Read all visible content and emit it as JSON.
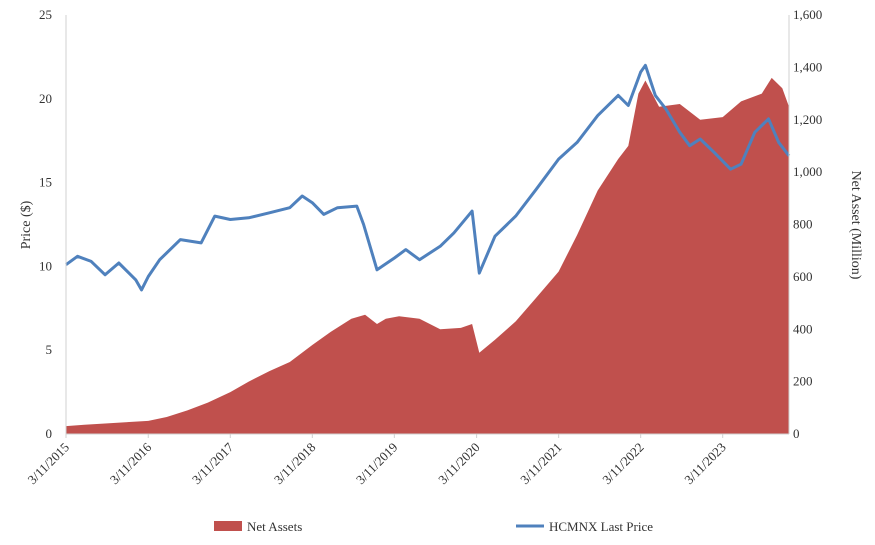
{
  "chart_data": {
    "type": "bar+line",
    "title": "",
    "xlabel": "",
    "ylabel_left": "Price ($)",
    "ylabel_right": "Net Asset (Million)",
    "ylim_left": [
      0,
      25
    ],
    "ylim_right": [
      0,
      1600
    ],
    "left_ticks": [
      "0",
      "5",
      "10",
      "15",
      "20",
      "25"
    ],
    "right_ticks": [
      "0",
      "200",
      "400",
      "600",
      "800",
      "1,000",
      "1,200",
      "1,400",
      "1,600"
    ],
    "x_ticks": [
      "3/11/2015",
      "3/11/2016",
      "3/11/2017",
      "3/11/2018",
      "3/11/2019",
      "3/11/2020",
      "3/11/2021",
      "3/11/2022",
      "3/11/2023"
    ],
    "x_range": [
      "2015-03-11",
      "2023-12-31"
    ],
    "grid": false,
    "legend_position": "bottom",
    "series": [
      {
        "name": "Net Assets",
        "type": "area",
        "axis": "right",
        "color": "#c0504d",
        "points": [
          [
            "2015-03-11",
            30
          ],
          [
            "2015-06-01",
            35
          ],
          [
            "2015-09-01",
            40
          ],
          [
            "2015-12-01",
            45
          ],
          [
            "2016-03-11",
            50
          ],
          [
            "2016-06-01",
            65
          ],
          [
            "2016-09-01",
            90
          ],
          [
            "2016-12-01",
            120
          ],
          [
            "2017-03-11",
            160
          ],
          [
            "2017-06-01",
            200
          ],
          [
            "2017-09-01",
            240
          ],
          [
            "2017-12-01",
            275
          ],
          [
            "2018-03-11",
            340
          ],
          [
            "2018-06-01",
            390
          ],
          [
            "2018-09-01",
            440
          ],
          [
            "2018-11-01",
            455
          ],
          [
            "2018-12-24",
            420
          ],
          [
            "2019-02-01",
            440
          ],
          [
            "2019-04-01",
            450
          ],
          [
            "2019-07-01",
            440
          ],
          [
            "2019-10-01",
            400
          ],
          [
            "2020-01-01",
            405
          ],
          [
            "2020-02-20",
            420
          ],
          [
            "2020-03-23",
            310
          ],
          [
            "2020-06-01",
            360
          ],
          [
            "2020-09-01",
            430
          ],
          [
            "2020-12-01",
            520
          ],
          [
            "2021-03-11",
            620
          ],
          [
            "2021-06-01",
            760
          ],
          [
            "2021-09-01",
            930
          ],
          [
            "2021-12-01",
            1050
          ],
          [
            "2022-01-15",
            1100
          ],
          [
            "2022-03-01",
            1300
          ],
          [
            "2022-04-01",
            1350
          ],
          [
            "2022-06-01",
            1250
          ],
          [
            "2022-09-01",
            1260
          ],
          [
            "2022-12-01",
            1200
          ],
          [
            "2023-03-11",
            1210
          ],
          [
            "2023-06-01",
            1270
          ],
          [
            "2023-09-01",
            1300
          ],
          [
            "2023-10-15",
            1360
          ],
          [
            "2023-12-01",
            1320
          ],
          [
            "2023-12-31",
            1250
          ]
        ]
      },
      {
        "name": "HCMNX Last Price",
        "type": "line",
        "axis": "left",
        "color": "#4f81bd",
        "points": [
          [
            "2015-03-11",
            10.1
          ],
          [
            "2015-05-01",
            10.6
          ],
          [
            "2015-07-01",
            10.3
          ],
          [
            "2015-09-01",
            9.5
          ],
          [
            "2015-11-01",
            10.2
          ],
          [
            "2016-01-15",
            9.2
          ],
          [
            "2016-02-10",
            8.6
          ],
          [
            "2016-03-11",
            9.4
          ],
          [
            "2016-05-01",
            10.4
          ],
          [
            "2016-08-01",
            11.6
          ],
          [
            "2016-11-01",
            11.4
          ],
          [
            "2017-01-01",
            13.0
          ],
          [
            "2017-03-11",
            12.8
          ],
          [
            "2017-06-01",
            12.9
          ],
          [
            "2017-09-01",
            13.2
          ],
          [
            "2017-12-01",
            13.5
          ],
          [
            "2018-01-25",
            14.2
          ],
          [
            "2018-03-11",
            13.8
          ],
          [
            "2018-05-01",
            13.1
          ],
          [
            "2018-07-01",
            13.5
          ],
          [
            "2018-09-25",
            13.6
          ],
          [
            "2018-10-25",
            12.5
          ],
          [
            "2018-12-24",
            9.8
          ],
          [
            "2019-03-11",
            10.5
          ],
          [
            "2019-05-01",
            11.0
          ],
          [
            "2019-07-01",
            10.4
          ],
          [
            "2019-10-01",
            11.2
          ],
          [
            "2019-12-01",
            12.0
          ],
          [
            "2020-02-20",
            13.3
          ],
          [
            "2020-03-23",
            9.6
          ],
          [
            "2020-06-01",
            11.8
          ],
          [
            "2020-09-01",
            13.0
          ],
          [
            "2020-12-01",
            14.6
          ],
          [
            "2021-03-11",
            16.4
          ],
          [
            "2021-06-01",
            17.4
          ],
          [
            "2021-09-01",
            19.0
          ],
          [
            "2021-12-01",
            20.2
          ],
          [
            "2022-01-15",
            19.6
          ],
          [
            "2022-03-11",
            21.6
          ],
          [
            "2022-04-01",
            22.0
          ],
          [
            "2022-05-15",
            20.2
          ],
          [
            "2022-07-01",
            19.4
          ],
          [
            "2022-09-01",
            18.0
          ],
          [
            "2022-10-15",
            17.2
          ],
          [
            "2022-12-01",
            17.6
          ],
          [
            "2023-02-01",
            16.8
          ],
          [
            "2023-04-15",
            15.8
          ],
          [
            "2023-06-01",
            16.1
          ],
          [
            "2023-08-01",
            18.0
          ],
          [
            "2023-10-01",
            18.8
          ],
          [
            "2023-11-15",
            17.4
          ],
          [
            "2023-12-31",
            16.6
          ]
        ]
      }
    ]
  }
}
